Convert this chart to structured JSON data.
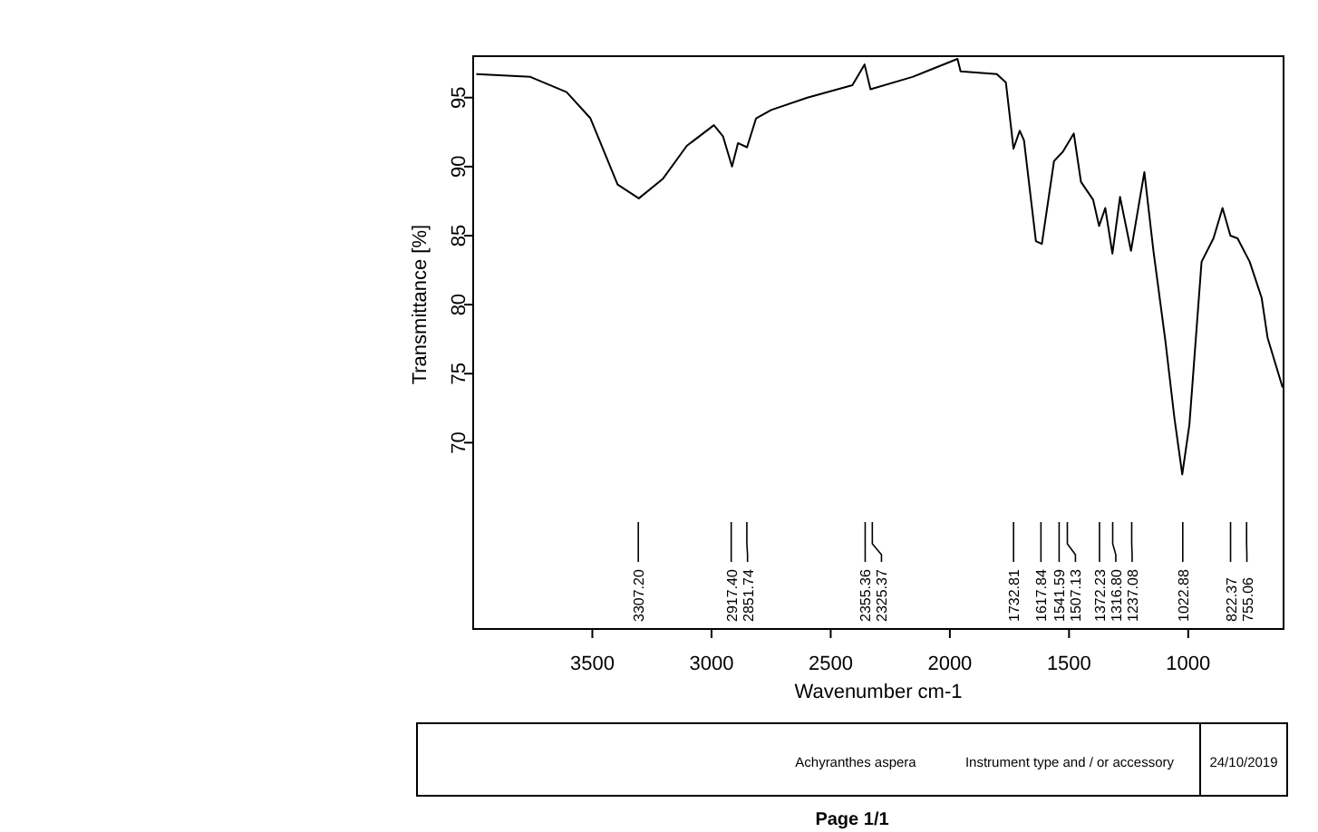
{
  "chart_data": {
    "type": "line",
    "xlabel": "Wavenumber cm-1",
    "ylabel": "Transmittance [%]",
    "xlim": [
      4000,
      600
    ],
    "xticks": [
      3500,
      3000,
      2500,
      2000,
      1500,
      1000
    ],
    "ylim": [
      56.5,
      98
    ],
    "yticks": [
      70,
      75,
      80,
      85,
      90,
      95
    ],
    "grid": false,
    "series": [
      {
        "color": "#000000",
        "x": [
          3987,
          3760,
          3608,
          3508,
          3394,
          3305,
          3205,
          3104,
          2990,
          2952,
          2914,
          2889,
          2851,
          2813,
          2750,
          2598,
          2409,
          2358,
          2333,
          2157,
          1968,
          1955,
          1803,
          1765,
          1733,
          1707,
          1689,
          1639,
          1614,
          1563,
          1525,
          1480,
          1450,
          1399,
          1374,
          1348,
          1318,
          1286,
          1240,
          1184,
          1146,
          1096,
          1058,
          1025,
          995,
          944,
          894,
          856,
          823,
          793,
          742,
          692,
          667,
          604
        ],
        "values": [
          96.7,
          96.5,
          95.4,
          93.5,
          88.7,
          87.7,
          89.1,
          91.5,
          93.0,
          92.2,
          90.0,
          91.7,
          91.4,
          93.5,
          94.1,
          95.0,
          95.9,
          97.4,
          95.6,
          96.5,
          97.8,
          96.9,
          96.7,
          96.1,
          91.3,
          92.6,
          91.9,
          84.6,
          84.4,
          90.4,
          91.1,
          92.4,
          88.9,
          87.6,
          85.7,
          87.0,
          83.7,
          87.8,
          83.9,
          89.6,
          83.9,
          77.4,
          71.8,
          67.7,
          71.3,
          83.1,
          84.8,
          87.0,
          85.0,
          84.8,
          83.1,
          80.5,
          77.6,
          74.0
        ]
      }
    ],
    "annotations": [
      {
        "text": "3307.20",
        "x": 3307.2
      },
      {
        "text": "2917.40",
        "x": 2917.4
      },
      {
        "text": "2851.74",
        "x": 2851.74
      },
      {
        "text": "2355.36",
        "x": 2355.36
      },
      {
        "text": "2325.37",
        "x": 2325.37
      },
      {
        "text": "1732.81",
        "x": 1732.81
      },
      {
        "text": "1617.84",
        "x": 1617.84
      },
      {
        "text": "1541.59",
        "x": 1541.59
      },
      {
        "text": "1507.13",
        "x": 1507.13
      },
      {
        "text": "1372.23",
        "x": 1372.23
      },
      {
        "text": "1316.80",
        "x": 1316.8
      },
      {
        "text": "1237.08",
        "x": 1237.08
      },
      {
        "text": "1022.88",
        "x": 1022.88
      },
      {
        "text": "822.37",
        "x": 822.37
      },
      {
        "text": "755.06",
        "x": 755.06
      },
      "Achyranthes aspera",
      "Instrument type and / or accessory",
      "24/10/2019",
      "Page 1/1"
    ]
  }
}
